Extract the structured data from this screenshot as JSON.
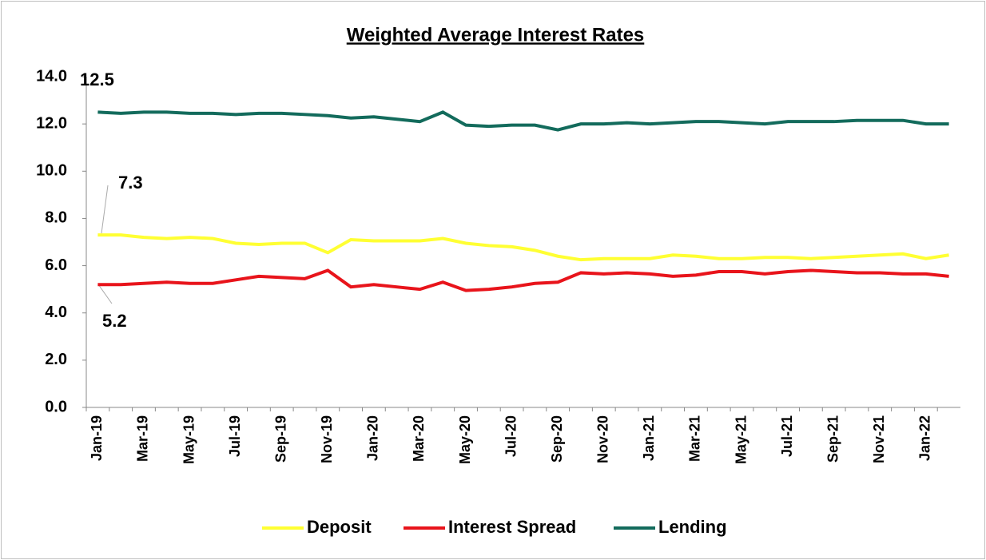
{
  "chart_data": {
    "type": "line",
    "title": "Weighted Average Interest Rates",
    "categories": [
      "Jan-19",
      null,
      "Mar-19",
      null,
      "May-19",
      null,
      "Jul-19",
      null,
      "Sep-19",
      null,
      "Nov-19",
      null,
      "Jan-20",
      null,
      "Mar-20",
      null,
      "May-20",
      null,
      "Jul-20",
      null,
      "Sep-20",
      null,
      "Nov-20",
      null,
      "Jan-21",
      null,
      "Mar-21",
      null,
      "May-21",
      null,
      "Jul-21",
      null,
      "Sep-21",
      null,
      "Nov-21",
      null,
      "Jan-22",
      null
    ],
    "series": [
      {
        "name": "Deposit",
        "color": "#ffff33",
        "values": [
          7.3,
          7.3,
          7.2,
          7.15,
          7.2,
          7.15,
          6.95,
          6.9,
          6.95,
          6.95,
          6.55,
          7.1,
          7.05,
          7.05,
          7.05,
          7.15,
          6.95,
          6.85,
          6.8,
          6.65,
          6.4,
          6.25,
          6.3,
          6.3,
          6.3,
          6.45,
          6.4,
          6.3,
          6.3,
          6.35,
          6.35,
          6.3,
          6.35,
          6.4,
          6.45,
          6.5,
          6.3,
          6.45
        ]
      },
      {
        "name": "Interest Spread",
        "color": "#e8141b",
        "values": [
          5.2,
          5.2,
          5.25,
          5.3,
          5.25,
          5.25,
          5.4,
          5.55,
          5.5,
          5.45,
          5.8,
          5.1,
          5.2,
          5.1,
          5.0,
          5.3,
          4.95,
          5.0,
          5.1,
          5.25,
          5.3,
          5.7,
          5.65,
          5.7,
          5.65,
          5.55,
          5.6,
          5.75,
          5.75,
          5.65,
          5.75,
          5.8,
          5.75,
          5.7,
          5.7,
          5.65,
          5.65,
          5.55
        ]
      },
      {
        "name": "Lending",
        "color": "#136b5c",
        "values": [
          12.5,
          12.45,
          12.5,
          12.5,
          12.45,
          12.45,
          12.4,
          12.45,
          12.45,
          12.4,
          12.35,
          12.25,
          12.3,
          12.2,
          12.1,
          12.5,
          11.95,
          11.9,
          11.95,
          11.95,
          11.75,
          12.0,
          12.0,
          12.05,
          12.0,
          12.05,
          12.1,
          12.1,
          12.05,
          12.0,
          12.1,
          12.1,
          12.1,
          12.15,
          12.15,
          12.15,
          12.0,
          12.0
        ]
      }
    ],
    "ylim": [
      0,
      14
    ],
    "yticks": [
      {
        "value": 0,
        "label": "0.0"
      },
      {
        "value": 2,
        "label": "2.0"
      },
      {
        "value": 4,
        "label": "4.0"
      },
      {
        "value": 6,
        "label": "6.0"
      },
      {
        "value": 8,
        "label": "8.0"
      },
      {
        "value": 10,
        "label": "10.0"
      },
      {
        "value": 12,
        "label": "12.0"
      },
      {
        "value": 14,
        "label": "14.0"
      }
    ],
    "grid": false,
    "legend": "bottom"
  }
}
